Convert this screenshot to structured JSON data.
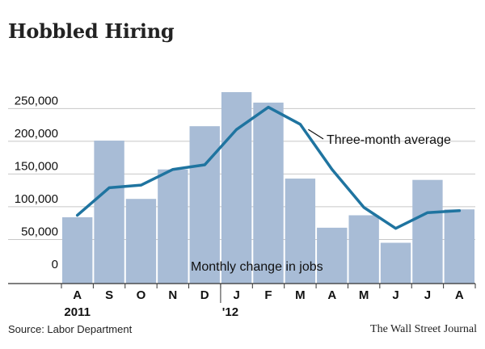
{
  "title": "Hobbled Hiring",
  "source": "Source: Labor Department",
  "credit": "The Wall Street Journal",
  "colors": {
    "bar": "#a8bcd6",
    "line": "#1f74a0",
    "grid": "#c8c8c8",
    "axis": "#333333"
  },
  "chart_data": {
    "type": "bar",
    "categories": [
      "A",
      "S",
      "O",
      "N",
      "D",
      "J",
      "F",
      "M",
      "A",
      "M",
      "J",
      "J",
      "A"
    ],
    "series": [
      {
        "name": "Monthly change in jobs",
        "type": "bar",
        "values": [
          84000,
          201000,
          112000,
          157000,
          223000,
          275000,
          259000,
          143000,
          68000,
          87000,
          45000,
          141000,
          96000
        ]
      },
      {
        "name": "Three-month average",
        "type": "line",
        "values": [
          87000,
          129000,
          133000,
          157000,
          164000,
          218000,
          252000,
          226000,
          157000,
          99000,
          67000,
          91000,
          94000
        ]
      }
    ],
    "year_labels": [
      {
        "index": 0,
        "label": "2011"
      },
      {
        "index": 5,
        "label": "'12"
      }
    ],
    "y_ticks": [
      0,
      50000,
      100000,
      150000,
      200000,
      250000
    ],
    "y_tick_labels": [
      "0",
      "50,000",
      "100,000",
      "150,000",
      "200,000",
      "250,000"
    ],
    "ylim": [
      0,
      280000
    ],
    "grid": true,
    "title": "Hobbled Hiring",
    "xlabel": "",
    "ylabel": ""
  }
}
